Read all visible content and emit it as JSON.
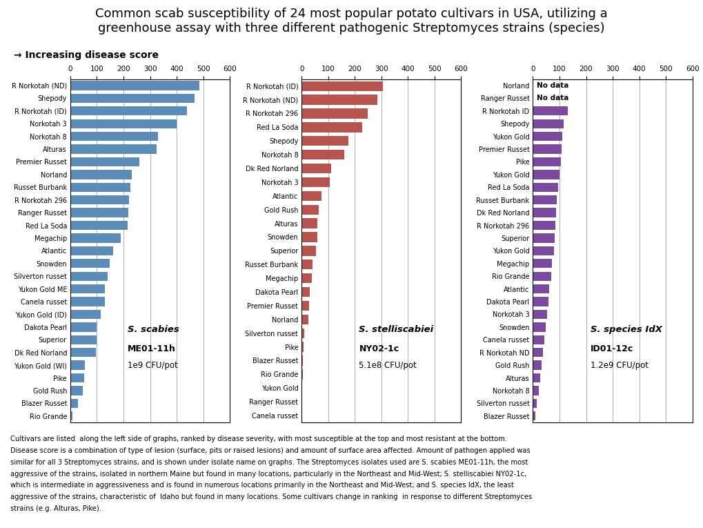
{
  "title": "Common scab susceptibility of 24 most popular potato cultivars in USA, utilizing a\ngreenhouse assay with three different pathogenic Streptomyces strains (species)",
  "subtitle": "→ Increasing disease score",
  "footer": [
    "Cultivars are listed  along the left side of graphs, ranked by disease severity, with most susceptible at the top and most resistant at the bottom.",
    "Disease score is a combination of type of lesion (surface, pits or raised lesions) and amount of surface area affected. Amount of pathogen applied was",
    "similar for all 3 Streptomyces strains, and is shown under isolate name on graphs. The Streptomyces isolates used are S. scabies ME01-11h, the most",
    "aggressive of the strains, isolated in northern Maine but found in many locations, particularly in the Northeast and Mid-West; S. stelliscabiei NY02-1c,",
    "which is intermediate in aggressiveness and is found in numerous locations primarily in the Northeast and Mid-West; and S. species IdX, the least",
    "aggressive of the strains, characteristic of  Idaho but found in many locations. Some cultivars change in ranking  in response to different Streptomyces",
    "strains (e.g. Alturas, Pike)."
  ],
  "chart_data": [
    {
      "type": "bar",
      "orientation": "horizontal",
      "color": "#5B8DB8",
      "annotation": [
        "S. scabies",
        "ME01-11h",
        "1e9 CFU/pot"
      ],
      "categories": [
        "R Norkotah (ND)",
        "Shepody",
        "R Norkotah (ID)",
        "Norkotah 3",
        "Norkotah 8",
        "Alturas",
        "Premier Russet",
        "Norland",
        "Russet Burbank",
        "R Norkotah 296",
        "Ranger Russet",
        "Red La Soda",
        "Megachip",
        "Atlantic",
        "Snowden",
        "Silverton russet",
        "Yukon Gold ME",
        "Canela russet",
        "Yukon Gold (ID)",
        "Dakota Pearl",
        "Superior",
        "Dk Red Norland",
        "Yukon Gold (WI)",
        "Pike",
        "Gold Rush",
        "Blazer Russet",
        "Rio Grande"
      ],
      "values": [
        485,
        468,
        440,
        400,
        330,
        325,
        260,
        230,
        225,
        220,
        218,
        215,
        190,
        160,
        148,
        140,
        130,
        130,
        115,
        100,
        98,
        97,
        55,
        52,
        48,
        30,
        8
      ],
      "xlim": [
        0,
        600
      ],
      "xticks": [
        0,
        100,
        200,
        300,
        400,
        500,
        600
      ],
      "grid": true
    },
    {
      "type": "bar",
      "orientation": "horizontal",
      "color": "#B85450",
      "annotation": [
        "S. stelliscabiei",
        "NY02-1c",
        "5.1e8 CFU/pot"
      ],
      "categories": [
        "R Norkotah (ID)",
        "R Norkotah (ND)",
        "R Norkotah 296",
        "Red La Soda",
        "Shepody",
        "Norkotah 8",
        "Dk Red Norland",
        "Norkotah 3",
        "Atlantic",
        "Gold Rush",
        "Alturas",
        "Snowden",
        "Superior",
        "Russet Burbank",
        "Megachip",
        "Dakota Pearl",
        "Premier Russet",
        "Norland",
        "Silverton russet",
        "Pike",
        "Blazer Russet",
        "Rio Grande",
        "Yukon Gold",
        "Ranger Russet",
        "Canela russet"
      ],
      "values": [
        305,
        285,
        248,
        228,
        175,
        160,
        110,
        105,
        75,
        65,
        60,
        58,
        55,
        40,
        38,
        30,
        28,
        25,
        10,
        8,
        5,
        4,
        3,
        2,
        1
      ],
      "xlim": [
        0,
        600
      ],
      "xticks": [
        0,
        100,
        200,
        300,
        400,
        500,
        600
      ],
      "grid": true
    },
    {
      "type": "bar",
      "orientation": "horizontal",
      "color": "#7B4A9E",
      "annotation": [
        "S. species IdX",
        "ID01-12c",
        "1.2e9 CFU/pot"
      ],
      "notes": [
        {
          "text": "No data",
          "category": "Norland"
        },
        {
          "text": "No data",
          "category": "Ranger Russet"
        }
      ],
      "categories": [
        "Norland",
        "Ranger Russet",
        "R Norkotah ID",
        "Shepody",
        "Yukon Gold",
        "Premier Russet",
        "Pike",
        "Yukon Gold",
        "Red La Soda",
        "Russet Burbank",
        "Dk Red Norland",
        "R Norkotah 296",
        "Superior",
        "Yukon Gold",
        "Megachip",
        "Rio Grande",
        "Atlantic",
        "Dakota Pearl",
        "Norkotah 3",
        "Snowden",
        "Canela russet",
        "R Norkotah ND",
        "Gold Rush",
        "Alturas",
        "Norkotah 8",
        "Silverton russet",
        "Blazer Russet"
      ],
      "values": [
        0,
        0,
        130,
        115,
        110,
        108,
        105,
        100,
        95,
        90,
        88,
        85,
        82,
        78,
        72,
        68,
        62,
        58,
        52,
        48,
        42,
        38,
        32,
        28,
        22,
        15,
        8
      ],
      "xlim": [
        0,
        600
      ],
      "xticks": [
        0,
        100,
        200,
        300,
        400,
        500,
        600
      ],
      "grid": true
    }
  ]
}
